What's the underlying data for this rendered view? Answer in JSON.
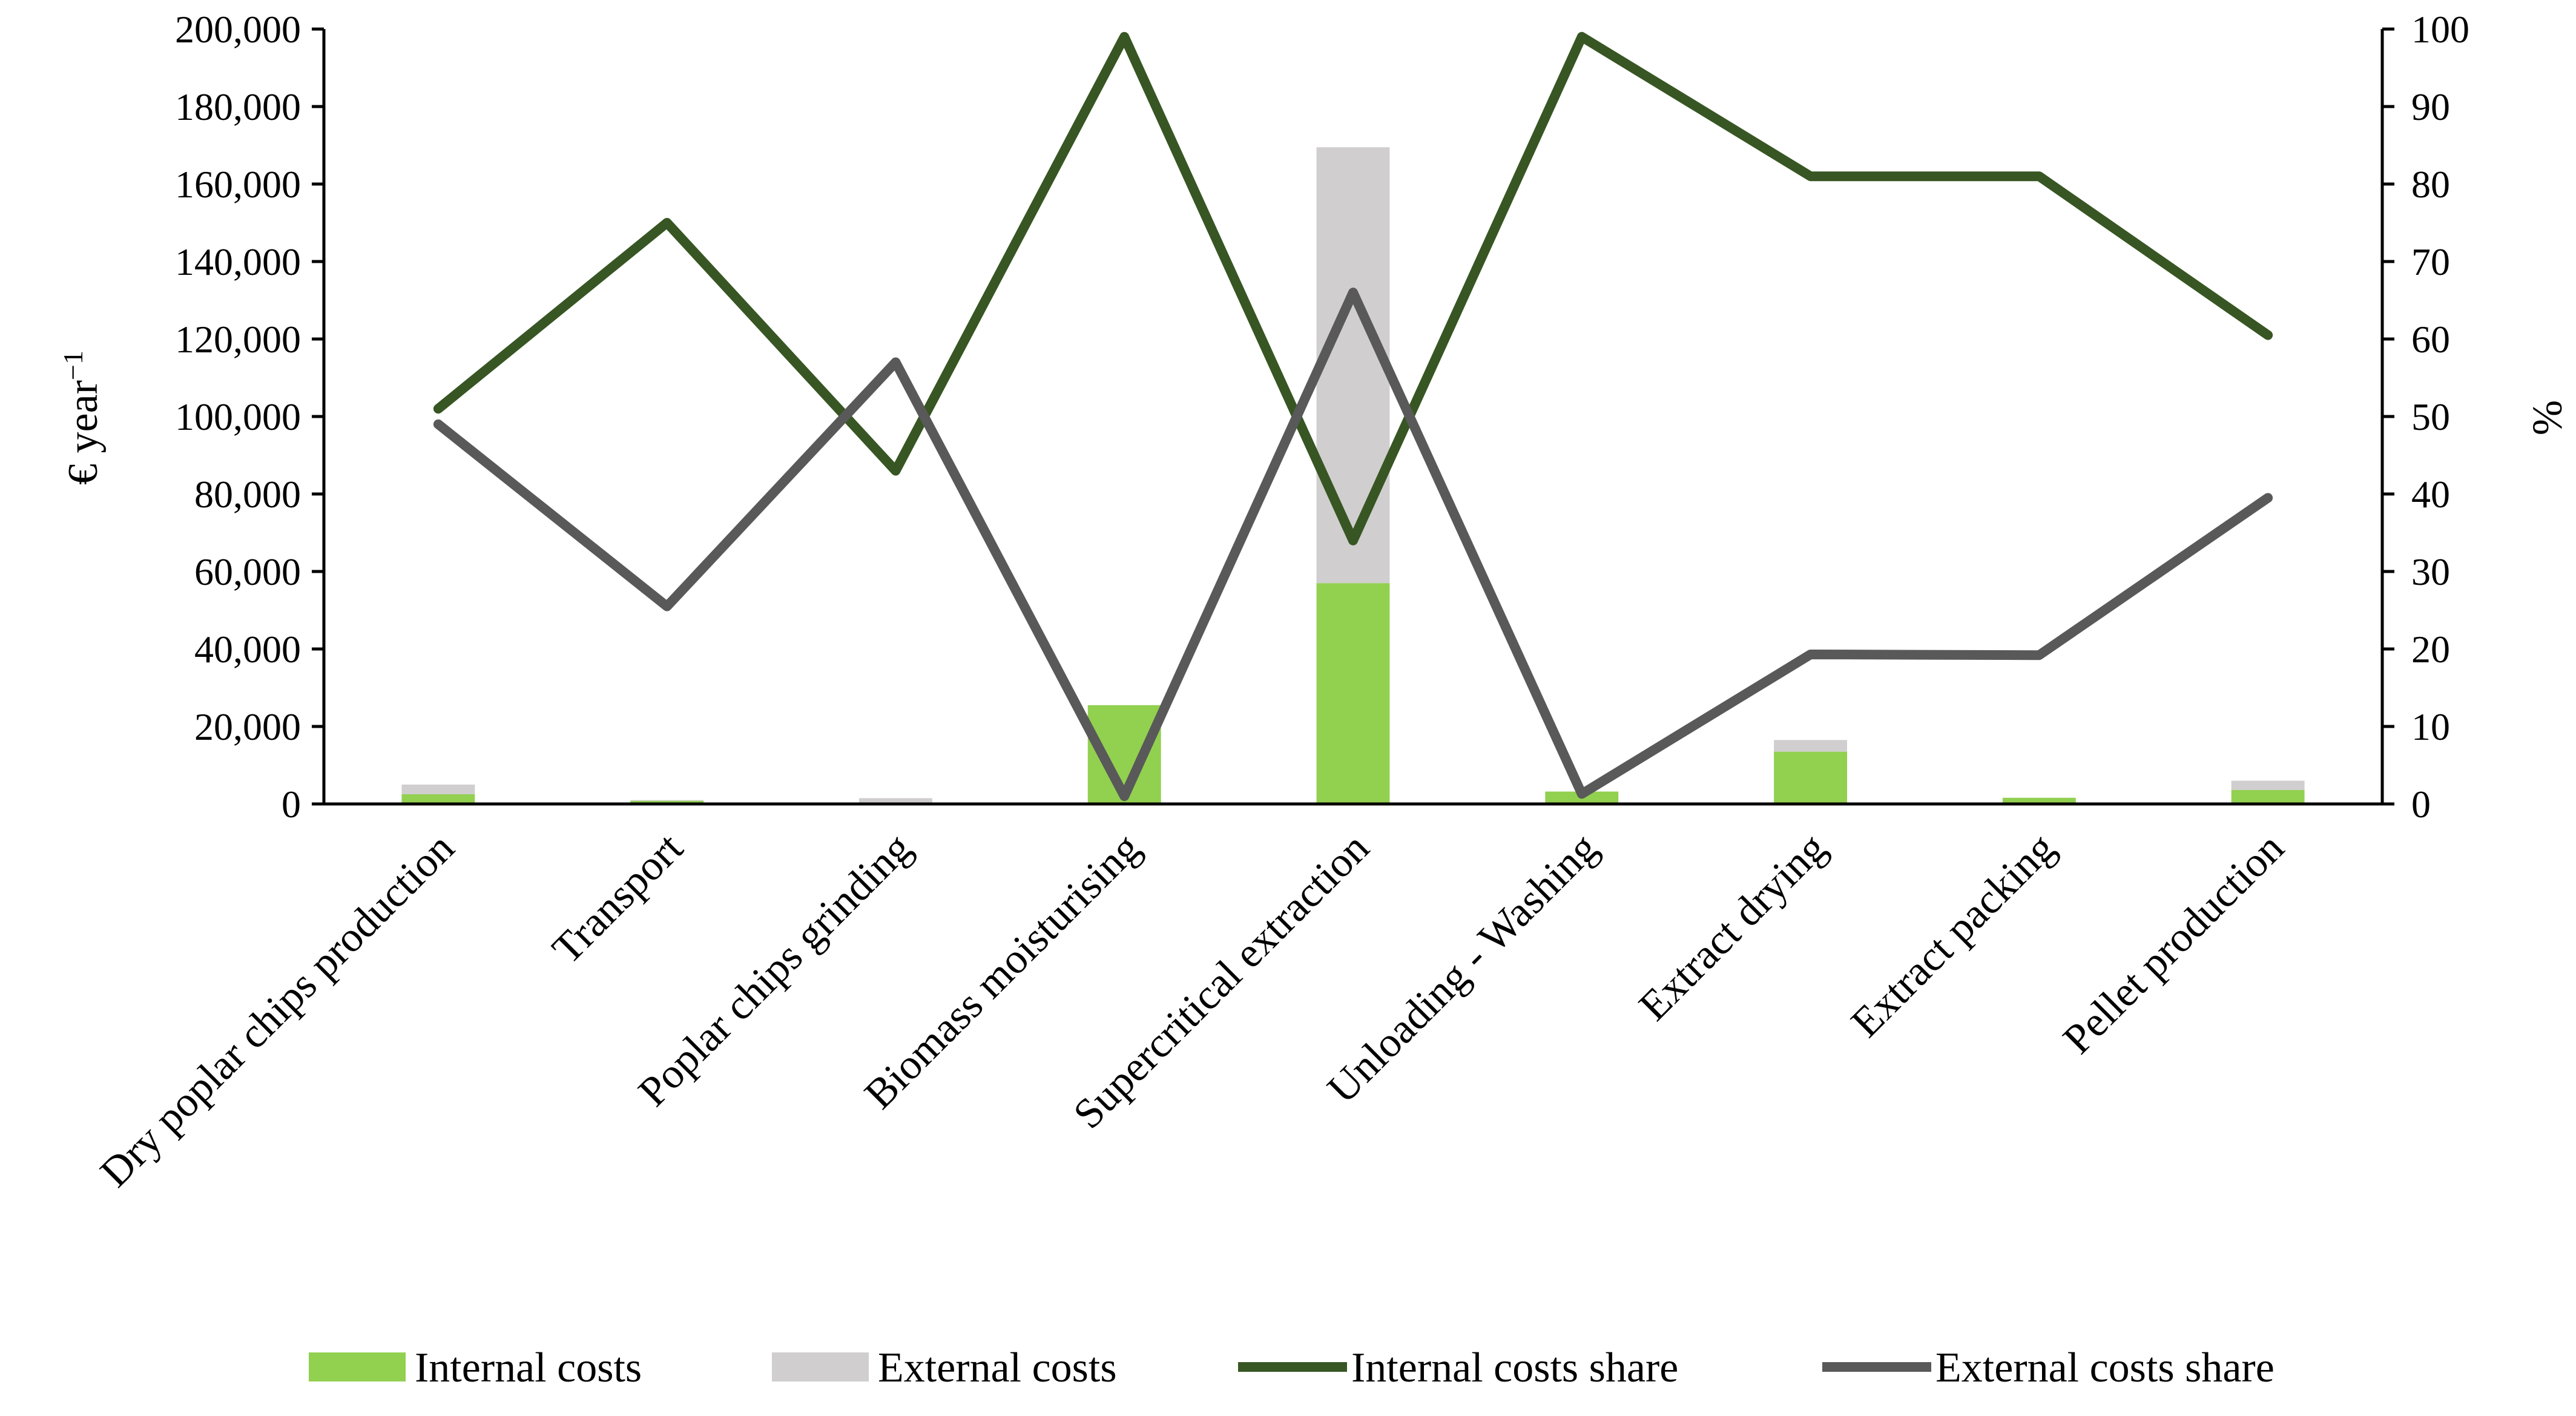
{
  "chart_data": {
    "type": "bar",
    "subtype": "stacked bar with line overlay on secondary axis",
    "categories": [
      "Dry poplar chips production",
      "Transport",
      "Poplar chips grinding",
      "Biomass moisturising",
      "Supercritical extraction",
      "Unloading - Washing",
      "Extract drying",
      "Extract packing",
      "Pellet production"
    ],
    "bar_series": [
      {
        "name": "Internal costs",
        "color": "#92d050",
        "values": [
          2500,
          800,
          300,
          25500,
          57000,
          3200,
          13500,
          1600,
          3600
        ]
      },
      {
        "name": "External costs",
        "color": "#d0cece",
        "values": [
          2500,
          200,
          1200,
          0,
          112500,
          0,
          3000,
          0,
          2400
        ]
      }
    ],
    "line_series": [
      {
        "name": "Internal costs share",
        "color": "#375623",
        "values": [
          51,
          75,
          43,
          99,
          34,
          99,
          81,
          81,
          60.5
        ]
      },
      {
        "name": "External costs share",
        "color": "#595959",
        "values": [
          49,
          25.5,
          57,
          1,
          66,
          1.3,
          19.3,
          19.2,
          39.5
        ]
      }
    ],
    "y_left": {
      "label_main": "€ year",
      "label_sup": "−1",
      "range": [
        0,
        200000
      ],
      "ticks": [
        "0",
        "20,000",
        "40,000",
        "60,000",
        "80,000",
        "100,000",
        "120,000",
        "140,000",
        "160,000",
        "180,000",
        "200,000"
      ]
    },
    "y_right": {
      "label": "%",
      "range": [
        0,
        100
      ],
      "ticks": [
        "0",
        "10",
        "20",
        "30",
        "40",
        "50",
        "60",
        "70",
        "80",
        "90",
        "100"
      ]
    },
    "grid": false,
    "legend_position": "bottom"
  }
}
